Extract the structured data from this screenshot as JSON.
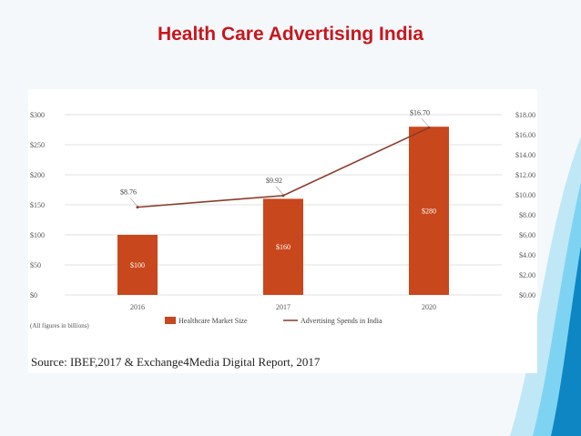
{
  "slide": {
    "title": "Health Care Advertising India",
    "source": "Source: IBEF,2017 & Exchange4Media Digital Report, 2017",
    "note": "(All figures in billions)"
  },
  "colors": {
    "title": "#c8161d",
    "bar": "#c9471c",
    "line": "#8b3a2a",
    "grid": "#e2e2e2",
    "wave_light": "#7fd3f2",
    "wave_dark": "#0e86c4"
  },
  "chart_data": {
    "type": "bar",
    "title": "",
    "categories": [
      "2016",
      "2017",
      "2020"
    ],
    "series": [
      {
        "name": "Healthcare Market Size",
        "type": "bar",
        "axis": "left",
        "values": [
          100,
          160,
          280
        ],
        "labels": [
          "$100",
          "$160",
          "$280"
        ]
      },
      {
        "name": "Advertising Spends in India",
        "type": "line",
        "axis": "right",
        "values": [
          8.76,
          9.92,
          16.7
        ],
        "labels": [
          "$8.76",
          "$9.92",
          "$16.70"
        ]
      }
    ],
    "left_axis": {
      "ylim": [
        0,
        300
      ],
      "ticks": [
        "$0",
        "$50",
        "$100",
        "$150",
        "$200",
        "$250",
        "$300"
      ]
    },
    "right_axis": {
      "ylim": [
        0,
        18
      ],
      "ticks": [
        "$0.00",
        "$2.00",
        "$4.00",
        "$6.00",
        "$8.00",
        "$10.00",
        "$12.00",
        "$14.00",
        "$16.00",
        "$18.00"
      ]
    },
    "grid": true,
    "legend": "bottom"
  }
}
